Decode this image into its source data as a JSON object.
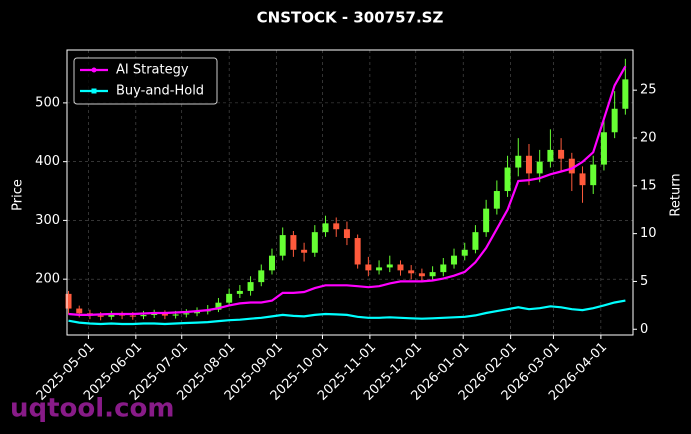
{
  "chart_data": {
    "type": "candlestick",
    "title": "CNSTOCK - 300757.SZ",
    "ylabel": "Price",
    "y2label": "Return",
    "watermark": "uqtool.com",
    "x": [
      "2025-04-18",
      "2025-04-25",
      "2025-05-02",
      "2025-05-09",
      "2025-05-16",
      "2025-05-23",
      "2025-05-30",
      "2025-06-06",
      "2025-06-13",
      "2025-06-20",
      "2025-06-27",
      "2025-07-04",
      "2025-07-11",
      "2025-07-18",
      "2025-07-25",
      "2025-08-01",
      "2025-08-08",
      "2025-08-15",
      "2025-08-22",
      "2025-08-29",
      "2025-09-05",
      "2025-09-12",
      "2025-09-19",
      "2025-09-26",
      "2025-10-03",
      "2025-10-10",
      "2025-10-17",
      "2025-10-24",
      "2025-10-31",
      "2025-11-07",
      "2025-11-14",
      "2025-11-21",
      "2025-11-28",
      "2025-12-05",
      "2025-12-12",
      "2025-12-19",
      "2025-12-26",
      "2026-01-02",
      "2026-01-09",
      "2026-01-16",
      "2026-01-23",
      "2026-01-30",
      "2026-02-06",
      "2026-02-13",
      "2026-02-20",
      "2026-02-27",
      "2026-03-06",
      "2026-03-13",
      "2026-03-20",
      "2026-03-27",
      "2026-04-03",
      "2026-04-10",
      "2026-04-17"
    ],
    "open": [
      175,
      150,
      142,
      138,
      136,
      140,
      138,
      137,
      139,
      141,
      138,
      140,
      142,
      145,
      148,
      160,
      175,
      180,
      195,
      215,
      240,
      275,
      250,
      245,
      280,
      295,
      285,
      270,
      225,
      215,
      220,
      225,
      215,
      210,
      205,
      212,
      225,
      240,
      250,
      280,
      320,
      350,
      390,
      410,
      380,
      400,
      420,
      405,
      380,
      360,
      395,
      450,
      490
    ],
    "high": [
      180,
      155,
      148,
      144,
      146,
      145,
      144,
      146,
      148,
      147,
      146,
      149,
      152,
      156,
      168,
      184,
      190,
      205,
      225,
      252,
      288,
      282,
      262,
      292,
      308,
      305,
      298,
      276,
      238,
      232,
      240,
      232,
      224,
      218,
      222,
      236,
      252,
      262,
      292,
      335,
      368,
      410,
      440,
      430,
      420,
      455,
      440,
      415,
      392,
      410,
      470,
      520,
      575
    ],
    "low": [
      140,
      135,
      132,
      130,
      131,
      132,
      131,
      132,
      134,
      132,
      133,
      135,
      137,
      140,
      144,
      155,
      168,
      172,
      188,
      208,
      232,
      238,
      230,
      238,
      272,
      272,
      258,
      218,
      205,
      208,
      212,
      206,
      200,
      196,
      198,
      205,
      218,
      232,
      244,
      272,
      310,
      340,
      375,
      360,
      365,
      390,
      385,
      350,
      330,
      345,
      385,
      440,
      480
    ],
    "close": [
      150,
      142,
      138,
      136,
      140,
      138,
      137,
      139,
      141,
      138,
      140,
      142,
      145,
      148,
      160,
      175,
      180,
      195,
      215,
      240,
      275,
      250,
      245,
      280,
      295,
      285,
      270,
      225,
      215,
      220,
      225,
      215,
      210,
      205,
      212,
      225,
      240,
      250,
      280,
      320,
      350,
      390,
      410,
      380,
      400,
      420,
      405,
      380,
      360,
      395,
      450,
      490,
      540
    ],
    "up_color": "#66ff33",
    "down_color": "#ff5a3c",
    "series": [
      {
        "name": "AI Strategy",
        "color": "#ff00ff",
        "axis": "y2",
        "marker": "circle",
        "values": [
          1.6,
          1.5,
          1.5,
          1.55,
          1.6,
          1.6,
          1.6,
          1.65,
          1.7,
          1.7,
          1.75,
          1.8,
          1.9,
          2.0,
          2.2,
          2.5,
          2.7,
          2.8,
          2.8,
          3.0,
          3.8,
          3.8,
          3.9,
          4.3,
          4.6,
          4.6,
          4.6,
          4.5,
          4.4,
          4.5,
          4.8,
          5.0,
          5.0,
          5.0,
          5.1,
          5.3,
          5.6,
          6.0,
          7.0,
          8.5,
          10.5,
          12.5,
          15.5,
          15.6,
          15.8,
          16.2,
          16.5,
          16.8,
          17.5,
          18.5,
          22.0,
          25.5,
          27.5
        ]
      },
      {
        "name": "Buy-and-Hold",
        "color": "#00ffff",
        "axis": "y2",
        "marker": "square",
        "values": [
          0.9,
          0.7,
          0.6,
          0.55,
          0.6,
          0.55,
          0.55,
          0.6,
          0.6,
          0.55,
          0.6,
          0.65,
          0.7,
          0.75,
          0.85,
          0.95,
          1.0,
          1.1,
          1.2,
          1.35,
          1.5,
          1.4,
          1.35,
          1.5,
          1.6,
          1.55,
          1.5,
          1.3,
          1.2,
          1.2,
          1.25,
          1.2,
          1.15,
          1.1,
          1.15,
          1.2,
          1.25,
          1.3,
          1.45,
          1.7,
          1.9,
          2.1,
          2.3,
          2.1,
          2.2,
          2.4,
          2.3,
          2.1,
          2.0,
          2.2,
          2.5,
          2.8,
          3.0
        ]
      }
    ],
    "xlim": [
      "2025-04-17",
      "2026-04-22"
    ],
    "xticks": [
      "2025-05-01",
      "2025-06-01",
      "2025-07-01",
      "2025-08-01",
      "2025-09-01",
      "2025-10-01",
      "2025-11-01",
      "2025-12-01",
      "2026-01-01",
      "2026-02-01",
      "2026-03-01",
      "2026-04-01"
    ],
    "ylim": [
      105,
      590
    ],
    "yticks": [
      200,
      300,
      400,
      500
    ],
    "y2lim": [
      -0.6,
      29.2
    ],
    "y2ticks": [
      0,
      5,
      10,
      15,
      20,
      25
    ],
    "grid": true,
    "legend": "upper left"
  }
}
